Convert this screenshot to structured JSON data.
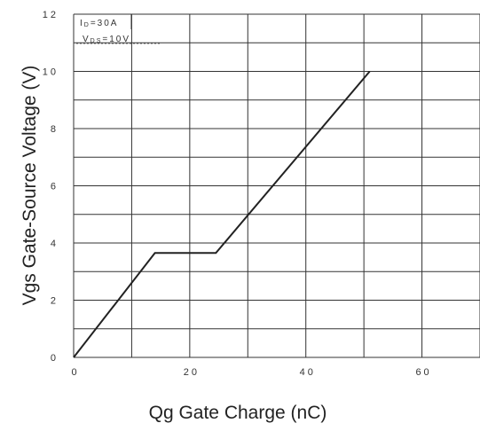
{
  "chart_data": {
    "type": "line",
    "xlabel": "Qg Gate Charge (nC)",
    "ylabel": "Vgs Gate-Source Voltage (V)",
    "xlim": [
      0,
      70
    ],
    "ylim": [
      0,
      12
    ],
    "x_ticks": [
      "0",
      "20",
      "40",
      "60"
    ],
    "y_ticks": [
      "0",
      "2",
      "4",
      "6",
      "8",
      "10",
      "12"
    ],
    "grid": true,
    "annotations": {
      "line1": {
        "main": "I",
        "sub": "D",
        "rest": "=30A"
      },
      "line2": {
        "main": "V",
        "sub": "DS",
        "rest": "=10V"
      }
    },
    "series": [
      {
        "color": "#222222",
        "x": [
          0,
          14,
          24.5,
          51
        ],
        "y": [
          0,
          3.65,
          3.65,
          10
        ]
      }
    ]
  }
}
